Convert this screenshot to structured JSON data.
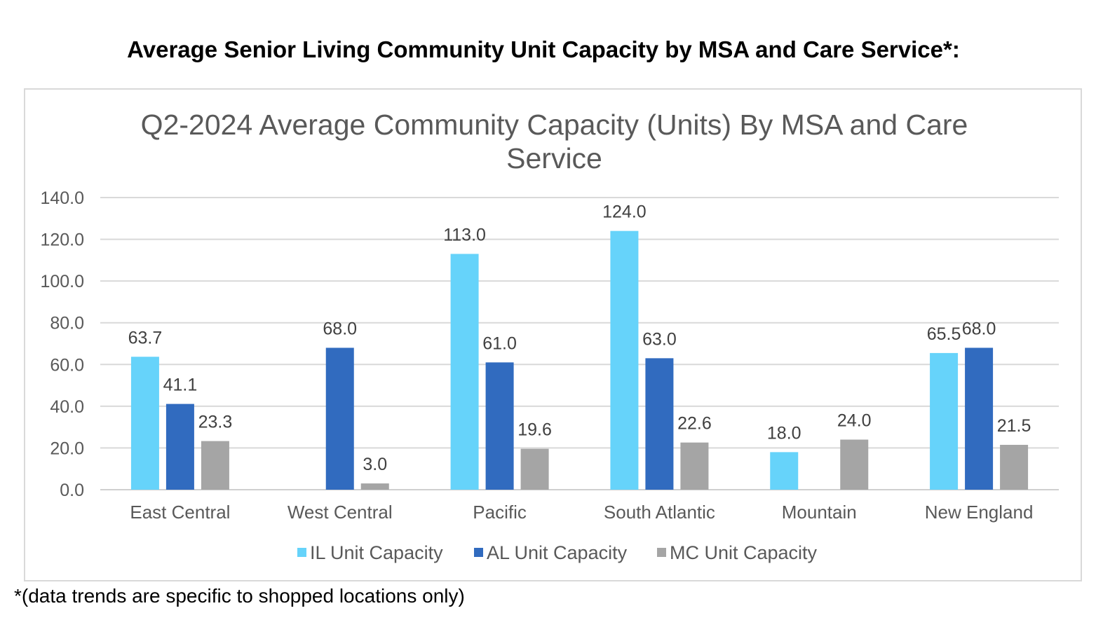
{
  "page": {
    "heading": "Average Senior Living Community Unit Capacity by MSA and Care Service*:",
    "footnote": "*(data trends are specific to shopped locations only)"
  },
  "chart_data": {
    "type": "bar",
    "title": "Q2-2024 Average Community Capacity (Units) By MSA and Care Service",
    "categories": [
      "East Central",
      "West Central",
      "Pacific",
      "South Atlantic",
      "Mountain",
      "New England"
    ],
    "series": [
      {
        "name": "IL Unit Capacity",
        "color": "#66d3fa",
        "values": [
          63.7,
          null,
          113.0,
          124.0,
          18.0,
          65.5
        ]
      },
      {
        "name": "AL Unit Capacity",
        "color": "#316bbf",
        "values": [
          41.1,
          68.0,
          61.0,
          63.0,
          null,
          68.0
        ]
      },
      {
        "name": "MC Unit Capacity",
        "color": "#a5a5a5",
        "values": [
          23.3,
          3.0,
          19.6,
          22.6,
          24.0,
          21.5
        ]
      }
    ],
    "yticks": [
      "0.0",
      "20.0",
      "40.0",
      "60.0",
      "80.0",
      "100.0",
      "120.0",
      "140.0"
    ],
    "ylim": [
      0,
      140
    ],
    "xlabel": "",
    "ylabel": "",
    "grid": true,
    "legend_position": "bottom"
  }
}
